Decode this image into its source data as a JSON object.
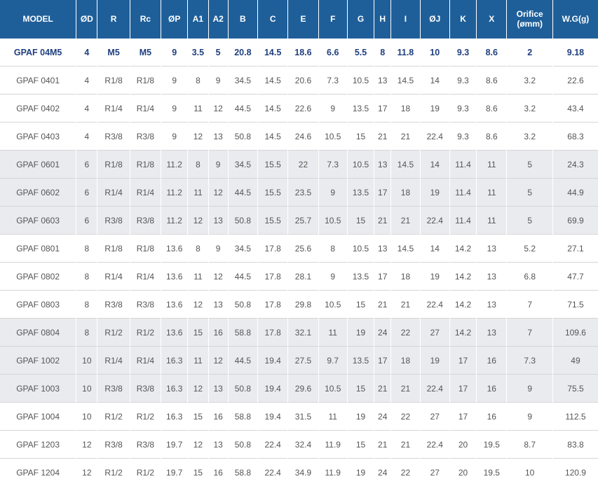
{
  "table": {
    "headers": [
      "MODEL",
      "ØD",
      "R",
      "Rc",
      "ØP",
      "A1",
      "A2",
      "B",
      "C",
      "E",
      "F",
      "G",
      "H",
      "I",
      "ØJ",
      "K",
      "X",
      "Orifice\n(ømm)",
      "W.G(g)"
    ],
    "rows": [
      [
        "GPAF 04M5",
        "4",
        "M5",
        "M5",
        "9",
        "3.5",
        "5",
        "20.8",
        "14.5",
        "18.6",
        "6.6",
        "5.5",
        "8",
        "11.8",
        "10",
        "9.3",
        "8.6",
        "2",
        "9.18"
      ],
      [
        "GPAF 0401",
        "4",
        "R1/8",
        "R1/8",
        "9",
        "8",
        "9",
        "34.5",
        "14.5",
        "20.6",
        "7.3",
        "10.5",
        "13",
        "14.5",
        "14",
        "9.3",
        "8.6",
        "3.2",
        "22.6"
      ],
      [
        "GPAF 0402",
        "4",
        "R1/4",
        "R1/4",
        "9",
        "11",
        "12",
        "44.5",
        "14.5",
        "22.6",
        "9",
        "13.5",
        "17",
        "18",
        "19",
        "9.3",
        "8.6",
        "3.2",
        "43.4"
      ],
      [
        "GPAF 0403",
        "4",
        "R3/8",
        "R3/8",
        "9",
        "12",
        "13",
        "50.8",
        "14.5",
        "24.6",
        "10.5",
        "15",
        "21",
        "21",
        "22.4",
        "9.3",
        "8.6",
        "3.2",
        "68.3"
      ],
      [
        "GPAF 0601",
        "6",
        "R1/8",
        "R1/8",
        "11.2",
        "8",
        "9",
        "34.5",
        "15.5",
        "22",
        "7.3",
        "10.5",
        "13",
        "14.5",
        "14",
        "11.4",
        "11",
        "5",
        "24.3"
      ],
      [
        "GPAF 0602",
        "6",
        "R1/4",
        "R1/4",
        "11.2",
        "11",
        "12",
        "44.5",
        "15.5",
        "23.5",
        "9",
        "13.5",
        "17",
        "18",
        "19",
        "11.4",
        "11",
        "5",
        "44.9"
      ],
      [
        "GPAF 0603",
        "6",
        "R3/8",
        "R3/8",
        "11.2",
        "12",
        "13",
        "50.8",
        "15.5",
        "25.7",
        "10.5",
        "15",
        "21",
        "21",
        "22.4",
        "11.4",
        "11",
        "5",
        "69.9"
      ],
      [
        "GPAF 0801",
        "8",
        "R1/8",
        "R1/8",
        "13.6",
        "8",
        "9",
        "34.5",
        "17.8",
        "25.6",
        "8",
        "10.5",
        "13",
        "14.5",
        "14",
        "14.2",
        "13",
        "5.2",
        "27.1"
      ],
      [
        "GPAF 0802",
        "8",
        "R1/4",
        "R1/4",
        "13.6",
        "11",
        "12",
        "44.5",
        "17.8",
        "28.1",
        "9",
        "13.5",
        "17",
        "18",
        "19",
        "14.2",
        "13",
        "6.8",
        "47.7"
      ],
      [
        "GPAF 0803",
        "8",
        "R3/8",
        "R3/8",
        "13.6",
        "12",
        "13",
        "50.8",
        "17.8",
        "29.8",
        "10.5",
        "15",
        "21",
        "21",
        "22.4",
        "14.2",
        "13",
        "7",
        "71.5"
      ],
      [
        "GPAF 0804",
        "8",
        "R1/2",
        "R1/2",
        "13.6",
        "15",
        "16",
        "58.8",
        "17.8",
        "32.1",
        "11",
        "19",
        "24",
        "22",
        "27",
        "14.2",
        "13",
        "7",
        "109.6"
      ],
      [
        "GPAF 1002",
        "10",
        "R1/4",
        "R1/4",
        "16.3",
        "11",
        "12",
        "44.5",
        "19.4",
        "27.5",
        "9.7",
        "13.5",
        "17",
        "18",
        "19",
        "17",
        "16",
        "7.3",
        "49"
      ],
      [
        "GPAF 1003",
        "10",
        "R3/8",
        "R3/8",
        "16.3",
        "12",
        "13",
        "50.8",
        "19.4",
        "29.6",
        "10.5",
        "15",
        "21",
        "21",
        "22.4",
        "17",
        "16",
        "9",
        "75.5"
      ],
      [
        "GPAF 1004",
        "10",
        "R1/2",
        "R1/2",
        "16.3",
        "15",
        "16",
        "58.8",
        "19.4",
        "31.5",
        "11",
        "19",
        "24",
        "22",
        "27",
        "17",
        "16",
        "9",
        "112.5"
      ],
      [
        "GPAF 1203",
        "12",
        "R3/8",
        "R3/8",
        "19.7",
        "12",
        "13",
        "50.8",
        "22.4",
        "32.4",
        "11.9",
        "15",
        "21",
        "21",
        "22.4",
        "20",
        "19.5",
        "8.7",
        "83.8"
      ],
      [
        "GPAF 1204",
        "12",
        "R1/2",
        "R1/2",
        "19.7",
        "15",
        "16",
        "58.8",
        "22.4",
        "34.9",
        "11.9",
        "19",
        "24",
        "22",
        "27",
        "20",
        "19.5",
        "10",
        "120.9"
      ]
    ]
  }
}
